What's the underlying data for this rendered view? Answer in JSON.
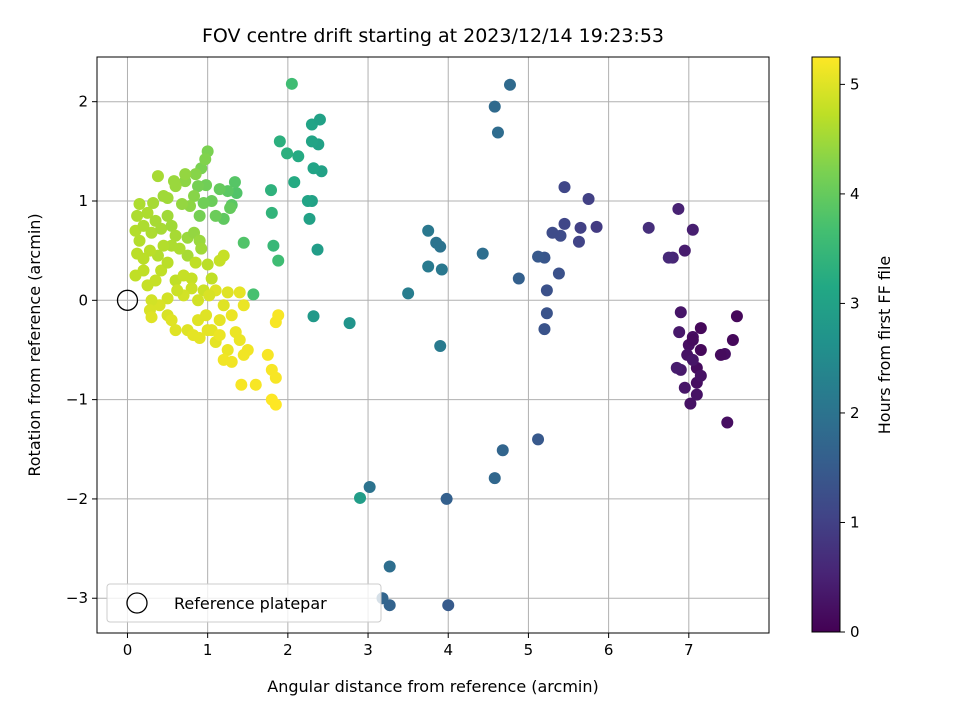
{
  "chart_data": {
    "type": "scatter",
    "title": "FOV centre drift starting at 2023/12/14 19:23:53",
    "xlabel": "Angular distance from reference (arcmin)",
    "ylabel": "Rotation from reference (arcmin)",
    "xlim": [
      -0.38,
      8.0
    ],
    "ylim": [
      -3.35,
      2.45
    ],
    "xticks": [
      0,
      1,
      2,
      3,
      4,
      5,
      6,
      7
    ],
    "yticks": [
      -3,
      -2,
      -1,
      0,
      1,
      2
    ],
    "ytick_labels": [
      "−3",
      "−2",
      "−1",
      "0",
      "1",
      "2"
    ],
    "grid": true,
    "colormap": "viridis",
    "colorbar": {
      "label": "Hours from first FF file",
      "range": [
        0,
        5.25
      ],
      "ticks": [
        0,
        1,
        2,
        3,
        4,
        5
      ]
    },
    "legend": {
      "location": "lower-left",
      "entries": [
        "Reference platepar"
      ]
    },
    "reference_point": {
      "x": 0,
      "y": 0,
      "label": "Reference platepar"
    },
    "points": [
      {
        "x": 7.6,
        "y": -0.16,
        "c": 0.1
      },
      {
        "x": 7.55,
        "y": -0.4,
        "c": 0.1
      },
      {
        "x": 7.45,
        "y": -0.54,
        "c": 0.2
      },
      {
        "x": 7.48,
        "y": -1.23,
        "c": 0.2
      },
      {
        "x": 7.4,
        "y": -0.55,
        "c": 0.15
      },
      {
        "x": 7.15,
        "y": -0.28,
        "c": 0.1
      },
      {
        "x": 7.15,
        "y": -0.5,
        "c": 0.1
      },
      {
        "x": 7.1,
        "y": -0.68,
        "c": 0.15
      },
      {
        "x": 7.1,
        "y": -0.83,
        "c": 0.2
      },
      {
        "x": 7.1,
        "y": -0.95,
        "c": 0.25
      },
      {
        "x": 7.02,
        "y": -1.04,
        "c": 0.25
      },
      {
        "x": 6.95,
        "y": -0.88,
        "c": 0.3
      },
      {
        "x": 7.0,
        "y": -0.45,
        "c": 0.2
      },
      {
        "x": 7.05,
        "y": -0.37,
        "c": 0.2
      },
      {
        "x": 6.98,
        "y": -0.55,
        "c": 0.25
      },
      {
        "x": 7.05,
        "y": -0.6,
        "c": 0.3
      },
      {
        "x": 6.9,
        "y": -0.7,
        "c": 0.35
      },
      {
        "x": 6.85,
        "y": -0.68,
        "c": 0.4
      },
      {
        "x": 6.9,
        "y": -0.12,
        "c": 0.3
      },
      {
        "x": 6.88,
        "y": -0.32,
        "c": 0.35
      },
      {
        "x": 7.15,
        "y": -0.76,
        "c": 0.25
      },
      {
        "x": 7.05,
        "y": -0.4,
        "c": 0.15
      },
      {
        "x": 6.95,
        "y": 0.5,
        "c": 0.4
      },
      {
        "x": 7.05,
        "y": 0.71,
        "c": 0.45
      },
      {
        "x": 6.87,
        "y": 0.92,
        "c": 0.5
      },
      {
        "x": 6.8,
        "y": 0.43,
        "c": 0.55
      },
      {
        "x": 6.75,
        "y": 0.43,
        "c": 0.6
      },
      {
        "x": 6.5,
        "y": 0.73,
        "c": 0.7
      },
      {
        "x": 5.85,
        "y": 0.74,
        "c": 0.9
      },
      {
        "x": 5.75,
        "y": 1.02,
        "c": 1.0
      },
      {
        "x": 5.65,
        "y": 0.73,
        "c": 1.0
      },
      {
        "x": 5.63,
        "y": 0.59,
        "c": 1.05
      },
      {
        "x": 5.45,
        "y": 1.14,
        "c": 1.1
      },
      {
        "x": 5.45,
        "y": 0.77,
        "c": 1.1
      },
      {
        "x": 5.4,
        "y": 0.65,
        "c": 1.2
      },
      {
        "x": 5.3,
        "y": 0.68,
        "c": 1.2
      },
      {
        "x": 5.38,
        "y": 0.27,
        "c": 1.3
      },
      {
        "x": 5.23,
        "y": 0.1,
        "c": 1.3
      },
      {
        "x": 5.23,
        "y": -0.13,
        "c": 1.35
      },
      {
        "x": 5.2,
        "y": -0.29,
        "c": 1.35
      },
      {
        "x": 5.2,
        "y": 0.43,
        "c": 1.4
      },
      {
        "x": 5.12,
        "y": 0.44,
        "c": 1.45
      },
      {
        "x": 5.12,
        "y": -1.4,
        "c": 1.45
      },
      {
        "x": 4.88,
        "y": 0.22,
        "c": 1.6
      },
      {
        "x": 4.68,
        "y": -1.51,
        "c": 1.7
      },
      {
        "x": 4.58,
        "y": -1.79,
        "c": 1.75
      },
      {
        "x": 4.77,
        "y": 2.17,
        "c": 1.8
      },
      {
        "x": 4.58,
        "y": 1.95,
        "c": 1.8
      },
      {
        "x": 4.62,
        "y": 1.69,
        "c": 1.85
      },
      {
        "x": 4.43,
        "y": 0.47,
        "c": 1.9
      },
      {
        "x": 3.98,
        "y": -2.0,
        "c": 1.6
      },
      {
        "x": 4.0,
        "y": -3.07,
        "c": 1.5
      },
      {
        "x": 3.27,
        "y": -3.07,
        "c": 1.65
      },
      {
        "x": 3.18,
        "y": -3.0,
        "c": 1.7
      },
      {
        "x": 3.27,
        "y": -2.68,
        "c": 1.9
      },
      {
        "x": 3.02,
        "y": -1.88,
        "c": 2.0
      },
      {
        "x": 3.9,
        "y": 0.54,
        "c": 2.0
      },
      {
        "x": 3.85,
        "y": 0.58,
        "c": 2.0
      },
      {
        "x": 3.75,
        "y": 0.7,
        "c": 2.1
      },
      {
        "x": 3.75,
        "y": 0.34,
        "c": 2.15
      },
      {
        "x": 3.92,
        "y": 0.31,
        "c": 2.1
      },
      {
        "x": 3.9,
        "y": -0.46,
        "c": 2.15
      },
      {
        "x": 3.5,
        "y": 0.07,
        "c": 2.2
      },
      {
        "x": 2.77,
        "y": -0.23,
        "c": 2.7
      },
      {
        "x": 2.9,
        "y": -1.99,
        "c": 2.9
      },
      {
        "x": 2.32,
        "y": -0.16,
        "c": 2.8
      },
      {
        "x": 2.37,
        "y": 0.51,
        "c": 2.9
      },
      {
        "x": 2.27,
        "y": 0.82,
        "c": 3.0
      },
      {
        "x": 2.3,
        "y": 1.0,
        "c": 3.0
      },
      {
        "x": 2.25,
        "y": 1.0,
        "c": 3.05
      },
      {
        "x": 2.42,
        "y": 1.3,
        "c": 3.0
      },
      {
        "x": 2.32,
        "y": 1.33,
        "c": 3.05
      },
      {
        "x": 2.38,
        "y": 1.57,
        "c": 3.0
      },
      {
        "x": 2.3,
        "y": 1.6,
        "c": 3.05
      },
      {
        "x": 2.3,
        "y": 1.77,
        "c": 3.05
      },
      {
        "x": 2.4,
        "y": 1.82,
        "c": 3.0
      },
      {
        "x": 2.08,
        "y": 1.19,
        "c": 3.2
      },
      {
        "x": 2.13,
        "y": 1.45,
        "c": 3.2
      },
      {
        "x": 1.99,
        "y": 1.48,
        "c": 3.3
      },
      {
        "x": 1.9,
        "y": 1.6,
        "c": 3.3
      },
      {
        "x": 2.05,
        "y": 2.18,
        "c": 3.6
      },
      {
        "x": 1.79,
        "y": 1.11,
        "c": 3.35
      },
      {
        "x": 1.8,
        "y": 0.88,
        "c": 3.4
      },
      {
        "x": 1.82,
        "y": 0.55,
        "c": 3.5
      },
      {
        "x": 1.88,
        "y": 0.4,
        "c": 3.6
      },
      {
        "x": 1.57,
        "y": 0.06,
        "c": 3.7
      },
      {
        "x": 1.45,
        "y": 0.58,
        "c": 3.8
      },
      {
        "x": 1.36,
        "y": 1.08,
        "c": 3.8
      },
      {
        "x": 1.34,
        "y": 1.19,
        "c": 3.85
      },
      {
        "x": 1.3,
        "y": 0.96,
        "c": 3.9
      },
      {
        "x": 1.25,
        "y": 1.1,
        "c": 3.9
      },
      {
        "x": 1.2,
        "y": 0.82,
        "c": 3.95
      },
      {
        "x": 1.28,
        "y": 0.93,
        "c": 4.0
      },
      {
        "x": 1.15,
        "y": 1.12,
        "c": 4.0
      },
      {
        "x": 1.1,
        "y": 0.85,
        "c": 4.05
      },
      {
        "x": 1.05,
        "y": 1.0,
        "c": 4.05
      },
      {
        "x": 0.98,
        "y": 1.16,
        "c": 4.1
      },
      {
        "x": 0.95,
        "y": 0.98,
        "c": 4.1
      },
      {
        "x": 0.9,
        "y": 0.85,
        "c": 4.15
      },
      {
        "x": 0.88,
        "y": 1.15,
        "c": 4.15
      },
      {
        "x": 0.92,
        "y": 1.33,
        "c": 4.2
      },
      {
        "x": 1.0,
        "y": 1.5,
        "c": 4.2
      },
      {
        "x": 0.97,
        "y": 1.42,
        "c": 4.25
      },
      {
        "x": 0.85,
        "y": 1.27,
        "c": 4.3
      },
      {
        "x": 0.83,
        "y": 1.05,
        "c": 4.3
      },
      {
        "x": 0.78,
        "y": 0.95,
        "c": 4.35
      },
      {
        "x": 0.72,
        "y": 1.2,
        "c": 4.35
      },
      {
        "x": 0.72,
        "y": 1.27,
        "c": 4.4
      },
      {
        "x": 0.68,
        "y": 0.97,
        "c": 4.4
      },
      {
        "x": 0.6,
        "y": 1.15,
        "c": 4.45
      },
      {
        "x": 0.58,
        "y": 1.2,
        "c": 4.45
      },
      {
        "x": 0.5,
        "y": 1.03,
        "c": 4.5
      },
      {
        "x": 0.45,
        "y": 1.05,
        "c": 4.5
      },
      {
        "x": 0.38,
        "y": 1.25,
        "c": 4.55
      },
      {
        "x": 0.32,
        "y": 0.98,
        "c": 4.55
      },
      {
        "x": 0.25,
        "y": 0.88,
        "c": 4.6
      },
      {
        "x": 0.15,
        "y": 0.97,
        "c": 4.6
      },
      {
        "x": 0.12,
        "y": 0.85,
        "c": 4.6
      },
      {
        "x": 0.1,
        "y": 0.7,
        "c": 4.65
      },
      {
        "x": 0.15,
        "y": 0.6,
        "c": 4.65
      },
      {
        "x": 0.2,
        "y": 0.75,
        "c": 4.6
      },
      {
        "x": 0.3,
        "y": 0.68,
        "c": 4.6
      },
      {
        "x": 0.35,
        "y": 0.8,
        "c": 4.55
      },
      {
        "x": 0.42,
        "y": 0.72,
        "c": 4.55
      },
      {
        "x": 0.5,
        "y": 0.85,
        "c": 4.5
      },
      {
        "x": 0.55,
        "y": 0.75,
        "c": 4.5
      },
      {
        "x": 0.6,
        "y": 0.65,
        "c": 4.55
      },
      {
        "x": 0.75,
        "y": 0.63,
        "c": 4.45
      },
      {
        "x": 0.83,
        "y": 0.68,
        "c": 4.4
      },
      {
        "x": 0.9,
        "y": 0.6,
        "c": 4.45
      },
      {
        "x": 0.92,
        "y": 0.52,
        "c": 4.5
      },
      {
        "x": 0.75,
        "y": 0.45,
        "c": 4.55
      },
      {
        "x": 0.65,
        "y": 0.52,
        "c": 4.6
      },
      {
        "x": 0.55,
        "y": 0.55,
        "c": 4.6
      },
      {
        "x": 0.45,
        "y": 0.55,
        "c": 4.65
      },
      {
        "x": 0.38,
        "y": 0.45,
        "c": 4.65
      },
      {
        "x": 0.28,
        "y": 0.5,
        "c": 4.7
      },
      {
        "x": 0.2,
        "y": 0.42,
        "c": 4.7
      },
      {
        "x": 0.12,
        "y": 0.47,
        "c": 4.7
      },
      {
        "x": 0.1,
        "y": 0.25,
        "c": 4.75
      },
      {
        "x": 0.2,
        "y": 0.3,
        "c": 4.75
      },
      {
        "x": 0.25,
        "y": 0.15,
        "c": 4.8
      },
      {
        "x": 0.35,
        "y": 0.2,
        "c": 4.8
      },
      {
        "x": 0.42,
        "y": 0.3,
        "c": 4.75
      },
      {
        "x": 0.5,
        "y": 0.38,
        "c": 4.7
      },
      {
        "x": 0.6,
        "y": 0.2,
        "c": 4.75
      },
      {
        "x": 0.7,
        "y": 0.25,
        "c": 4.8
      },
      {
        "x": 0.8,
        "y": 0.22,
        "c": 4.8
      },
      {
        "x": 0.85,
        "y": 0.38,
        "c": 4.75
      },
      {
        "x": 1.0,
        "y": 0.36,
        "c": 4.7
      },
      {
        "x": 1.05,
        "y": 0.22,
        "c": 4.75
      },
      {
        "x": 1.15,
        "y": 0.4,
        "c": 4.8
      },
      {
        "x": 1.2,
        "y": 0.45,
        "c": 4.8
      },
      {
        "x": 0.95,
        "y": 0.1,
        "c": 4.85
      },
      {
        "x": 0.88,
        "y": 0.0,
        "c": 4.9
      },
      {
        "x": 0.8,
        "y": 0.12,
        "c": 4.85
      },
      {
        "x": 0.7,
        "y": 0.05,
        "c": 4.9
      },
      {
        "x": 0.62,
        "y": 0.1,
        "c": 4.85
      },
      {
        "x": 0.5,
        "y": 0.02,
        "c": 4.9
      },
      {
        "x": 0.4,
        "y": -0.05,
        "c": 4.95
      },
      {
        "x": 0.3,
        "y": 0.0,
        "c": 4.9
      },
      {
        "x": 0.28,
        "y": -0.1,
        "c": 4.95
      },
      {
        "x": 0.3,
        "y": -0.17,
        "c": 5.0
      },
      {
        "x": 0.5,
        "y": -0.15,
        "c": 4.95
      },
      {
        "x": 0.55,
        "y": -0.2,
        "c": 5.0
      },
      {
        "x": 0.6,
        "y": -0.3,
        "c": 5.0
      },
      {
        "x": 0.75,
        "y": -0.3,
        "c": 5.0
      },
      {
        "x": 0.82,
        "y": -0.35,
        "c": 5.05
      },
      {
        "x": 0.9,
        "y": -0.38,
        "c": 5.05
      },
      {
        "x": 0.88,
        "y": -0.2,
        "c": 5.0
      },
      {
        "x": 0.98,
        "y": -0.15,
        "c": 5.0
      },
      {
        "x": 1.05,
        "y": -0.3,
        "c": 5.05
      },
      {
        "x": 1.1,
        "y": -0.42,
        "c": 5.05
      },
      {
        "x": 1.15,
        "y": -0.2,
        "c": 5.05
      },
      {
        "x": 1.2,
        "y": -0.05,
        "c": 5.0
      },
      {
        "x": 1.25,
        "y": 0.08,
        "c": 5.0
      },
      {
        "x": 1.1,
        "y": 0.1,
        "c": 5.0
      },
      {
        "x": 1.02,
        "y": 0.05,
        "c": 4.95
      },
      {
        "x": 1.3,
        "y": -0.15,
        "c": 5.1
      },
      {
        "x": 1.35,
        "y": -0.32,
        "c": 5.1
      },
      {
        "x": 1.4,
        "y": -0.4,
        "c": 5.1
      },
      {
        "x": 1.4,
        "y": 0.08,
        "c": 5.05
      },
      {
        "x": 1.45,
        "y": -0.05,
        "c": 5.1
      },
      {
        "x": 1.5,
        "y": -0.5,
        "c": 5.15
      },
      {
        "x": 1.45,
        "y": -0.55,
        "c": 5.15
      },
      {
        "x": 1.25,
        "y": -0.5,
        "c": 5.1
      },
      {
        "x": 1.2,
        "y": -0.6,
        "c": 5.15
      },
      {
        "x": 1.3,
        "y": -0.62,
        "c": 5.15
      },
      {
        "x": 1.15,
        "y": -0.35,
        "c": 5.1
      },
      {
        "x": 1.0,
        "y": -0.3,
        "c": 5.05
      },
      {
        "x": 1.42,
        "y": -0.85,
        "c": 5.2
      },
      {
        "x": 1.6,
        "y": -0.85,
        "c": 5.2
      },
      {
        "x": 1.75,
        "y": -0.55,
        "c": 5.2
      },
      {
        "x": 1.8,
        "y": -0.7,
        "c": 5.2
      },
      {
        "x": 1.85,
        "y": -0.78,
        "c": 5.2
      },
      {
        "x": 1.8,
        "y": -1.0,
        "c": 5.25
      },
      {
        "x": 1.85,
        "y": -1.05,
        "c": 5.25
      },
      {
        "x": 1.85,
        "y": -0.22,
        "c": 5.2
      },
      {
        "x": 1.88,
        "y": -0.15,
        "c": 5.2
      }
    ]
  }
}
